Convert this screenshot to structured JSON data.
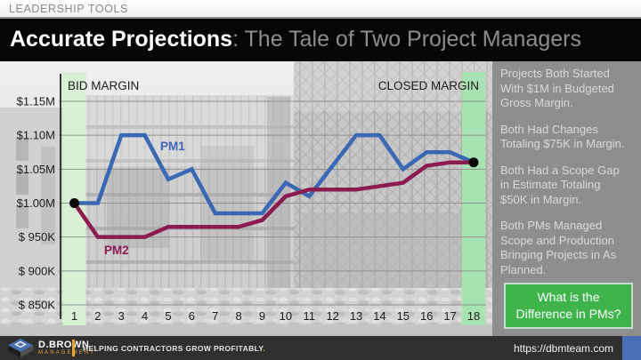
{
  "meta_bar": {
    "label": "LEADERSHIP TOOLS"
  },
  "title_bar": {
    "title_bold": "Accurate Projections",
    "title_rest": ": The Tale of Two Project Managers"
  },
  "chart_data": {
    "type": "line",
    "x": [
      1,
      2,
      3,
      4,
      5,
      6,
      7,
      8,
      9,
      10,
      11,
      12,
      13,
      14,
      15,
      16,
      17,
      18
    ],
    "xlabel": "",
    "ylabel": "",
    "ylim": [
      0.85,
      1.15
    ],
    "y_tick_values": [
      1.15,
      1.1,
      1.05,
      1.0,
      0.95,
      0.9,
      0.85
    ],
    "y_tick_labels": [
      "$1.15M",
      "$1.10M",
      "$1.05M",
      "$1.00M",
      "$ 950K",
      "$ 900K",
      "$ 850K"
    ],
    "grid": true,
    "legend_position": "inline-labels",
    "series": [
      {
        "name": "PM1",
        "color": "#3a68b2",
        "values": [
          1.0,
          1.0,
          1.1,
          1.1,
          1.035,
          1.05,
          0.985,
          0.985,
          0.985,
          1.03,
          1.01,
          1.055,
          1.1,
          1.1,
          1.05,
          1.075,
          1.075,
          1.06
        ]
      },
      {
        "name": "PM2",
        "color": "#8c1b4f",
        "values": [
          1.0,
          0.95,
          0.95,
          0.95,
          0.965,
          0.965,
          0.965,
          0.965,
          0.975,
          1.01,
          1.02,
          1.02,
          1.02,
          1.025,
          1.03,
          1.055,
          1.06,
          1.06
        ]
      }
    ],
    "annotations": {
      "left": "BID MARGIN",
      "right": "CLOSED MARGIN"
    },
    "markers": [
      {
        "x": 1,
        "value": 1.0
      },
      {
        "x": 18,
        "value": 1.06
      }
    ],
    "highlight_columns": [
      1,
      18
    ],
    "highlight_colors": [
      "#d9efd6",
      "#a7e3b0"
    ],
    "marker_color": "#0a0a0a",
    "grid_color": "#909090",
    "axis_color": "#3a3a3a",
    "tick_color": "#1c1c1c"
  },
  "sidebar": {
    "bg": "#8e8e8e",
    "notes": [
      [
        "Projects Both Started",
        "With $1M in Budgeted",
        "Gross Margin."
      ],
      [
        "Both Had Changes",
        "Totaling $75K in Margin."
      ],
      [
        "Both Had a Scope Gap",
        "in Estimate Totaling",
        "$50K in Margin."
      ],
      [
        "Both PMs Managed",
        "Scope and Production",
        "Bringing Projects in As",
        "Planned."
      ]
    ],
    "cta": {
      "lines": [
        "What is the",
        "Difference in PMs?"
      ],
      "bg": "#3eb44a"
    }
  },
  "footer": {
    "logo_name": "D.BROWN",
    "logo_sub": "MANAGEMENT",
    "tagline": "HELPING CONTRACTORS GROW PROFITABLY",
    "tagline_period": ".",
    "url": "https://dbmteam.com",
    "accent_orange": "#e9a23c",
    "accent_blue": "#4a6fb5"
  }
}
